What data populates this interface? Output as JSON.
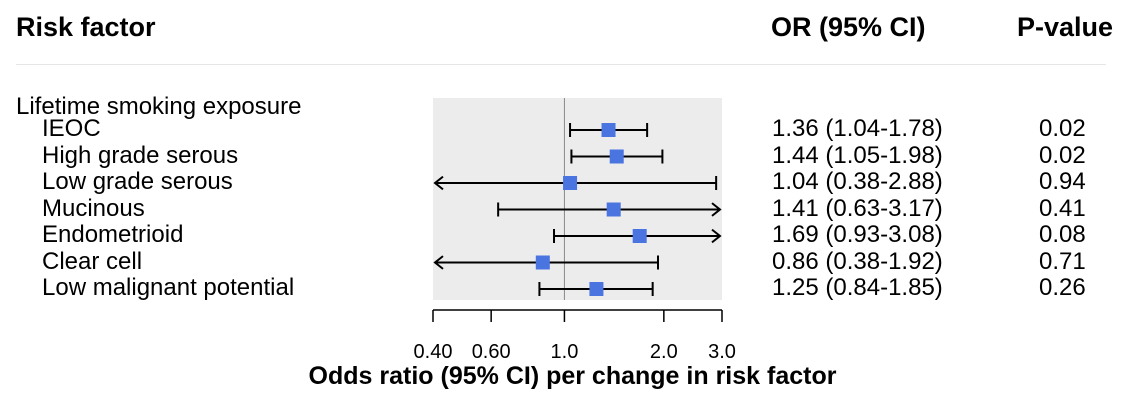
{
  "header": {
    "risk_factor": "Risk factor",
    "or_ci": "OR (95% CI)",
    "p_value": "P-value"
  },
  "group_label": "Lifetime smoking exposure",
  "chart_data": {
    "type": "forest",
    "xlabel": "Odds ratio (95% CI) per change in risk factor",
    "x_scale": "log",
    "xlim": [
      0.4,
      3.0
    ],
    "reference_line": 1.0,
    "ticks": [
      {
        "value": 0.4,
        "label": "0.40"
      },
      {
        "value": 0.6,
        "label": "0.60"
      },
      {
        "value": 1.0,
        "label": "1.0"
      },
      {
        "value": 2.0,
        "label": "2.0"
      },
      {
        "value": 3.0,
        "label": "3.0"
      }
    ],
    "marker_color": "#4a74e0",
    "panel_color": "#ececec",
    "rows": [
      {
        "label": "IEOC",
        "or": 1.36,
        "lower": 1.04,
        "upper": 1.78,
        "ci_text": "1.36 (1.04-1.78)",
        "p": "0.02"
      },
      {
        "label": "High grade serous",
        "or": 1.44,
        "lower": 1.05,
        "upper": 1.98,
        "ci_text": "1.44 (1.05-1.98)",
        "p": "0.02"
      },
      {
        "label": "Low grade serous",
        "or": 1.04,
        "lower": 0.38,
        "upper": 2.88,
        "ci_text": "1.04 (0.38-2.88)",
        "p": "0.94"
      },
      {
        "label": "Mucinous",
        "or": 1.41,
        "lower": 0.63,
        "upper": 3.17,
        "ci_text": "1.41 (0.63-3.17)",
        "p": "0.41"
      },
      {
        "label": "Endometrioid",
        "or": 1.69,
        "lower": 0.93,
        "upper": 3.08,
        "ci_text": "1.69 (0.93-3.08)",
        "p": "0.08"
      },
      {
        "label": "Clear cell",
        "or": 0.86,
        "lower": 0.38,
        "upper": 1.92,
        "ci_text": "0.86 (0.38-1.92)",
        "p": "0.71"
      },
      {
        "label": "Low malignant potential",
        "or": 1.25,
        "lower": 0.84,
        "upper": 1.85,
        "ci_text": "1.25 (0.84-1.85)",
        "p": "0.26"
      }
    ]
  }
}
